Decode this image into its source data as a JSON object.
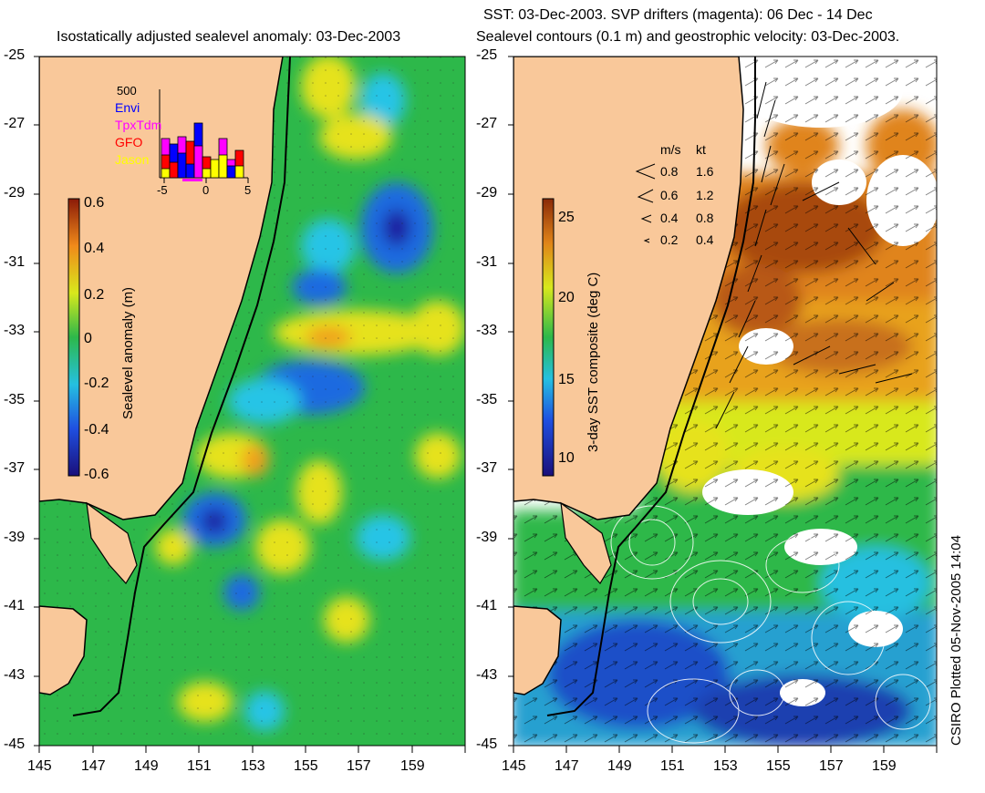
{
  "left_panel": {
    "title": "Isostatically adjusted sealevel anomaly: 03-Dec-2003",
    "y_ticks": [
      "-25",
      "-27",
      "-29",
      "-31",
      "-33",
      "-35",
      "-37",
      "-39",
      "-41",
      "-43",
      "-45"
    ],
    "x_ticks": [
      "145",
      "147",
      "149",
      "151",
      "153",
      "155",
      "157",
      "159"
    ],
    "colorbar": {
      "label": "Sealevel anomaly (m)",
      "ticks": [
        "0.6",
        "0.4",
        "0.2",
        "0",
        "-0.2",
        "-0.4",
        "-0.6"
      ]
    },
    "inset": {
      "max_label": "500",
      "legend": [
        {
          "name": "Envi",
          "color": "#0000ff"
        },
        {
          "name": "TpxTdm",
          "color": "#ff00ff"
        },
        {
          "name": "GFO",
          "color": "#ff0000"
        },
        {
          "name": "Jason",
          "color": "#ffff00"
        }
      ],
      "x_ticks": [
        "-5",
        "0",
        "5"
      ]
    }
  },
  "right_panel": {
    "title_line1": "SST: 03-Dec-2003. SVP drifters (magenta): 06 Dec - 14 Dec",
    "title_line2": "Sealevel contours (0.1 m) and geostrophic velocity: 03-Dec-2003.",
    "y_ticks": [
      "-25",
      "-27",
      "-29",
      "-31",
      "-33",
      "-35",
      "-37",
      "-39",
      "-41",
      "-43",
      "-45"
    ],
    "x_ticks": [
      "145",
      "147",
      "149",
      "151",
      "153",
      "155",
      "157",
      "159"
    ],
    "colorbar": {
      "label": "3-day SST composite (deg C)",
      "ticks": [
        "25",
        "20",
        "15",
        "10"
      ]
    },
    "velocity_legend": {
      "header_ms": "m/s",
      "header_kt": "kt",
      "rows": [
        {
          "ms": "0.8",
          "kt": "1.6"
        },
        {
          "ms": "0.6",
          "kt": "1.2"
        },
        {
          "ms": "0.4",
          "kt": "0.8"
        },
        {
          "ms": "0.2",
          "kt": "0.4"
        }
      ]
    }
  },
  "credit": "CSIRO Plotted 05-Nov-2005 14:04",
  "colors": {
    "land": "#f9c89a",
    "ocean_green": "#2db84a",
    "coastline": "#000000"
  }
}
